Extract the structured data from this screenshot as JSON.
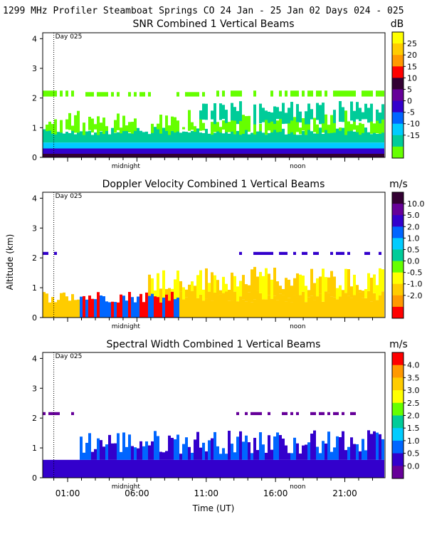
{
  "header": {
    "title": "1299 MHz Profiler  Steamboat Springs CO  24 Jan - 25 Jan 02 Days 024 - 025"
  },
  "shared_axes": {
    "ylabel": "Altitude (km)",
    "xlabel": "Time (UT)",
    "ylim": [
      0,
      4.2
    ],
    "y_ticks": [
      0,
      1,
      2,
      3,
      4
    ],
    "x_tick_labels": [
      "01:00",
      "06:00",
      "11:00",
      "16:00",
      "21:00"
    ],
    "x_tick_hours": [
      1,
      6,
      11,
      16,
      21
    ],
    "day_marker_label": "Day 025",
    "midnight_label": "midnight",
    "noon_label": "noon"
  },
  "chart_data": [
    {
      "type": "heatmap",
      "title": "SNR Combined 1 Vertical Beams",
      "colorbar_unit": "dB",
      "colorbar_labels": [
        "25",
        "20",
        "15",
        "10",
        "5",
        "0",
        "-5",
        "-10",
        "-15"
      ],
      "colorbar_colors": [
        "#ffff00",
        "#ffcc00",
        "#ff9900",
        "#ff0000",
        "#330033",
        "#660099",
        "#3300cc",
        "#0066ff",
        "#00ccff",
        "#00cc99",
        "#66ff00"
      ]
    },
    {
      "type": "heatmap",
      "title": "Doppler Velocity Combined 1 Vertical Beams",
      "colorbar_unit": "m/s",
      "colorbar_labels": [
        "10.0",
        "5.0",
        "2.0",
        "1.0",
        "0.5",
        "0.0",
        "-0.5",
        "-1.0",
        "-2.0"
      ],
      "colorbar_colors": [
        "#330033",
        "#660099",
        "#3300cc",
        "#0066ff",
        "#00ccff",
        "#00cc99",
        "#66ff00",
        "#ffff00",
        "#ffcc00",
        "#ff9900",
        "#ff0000"
      ]
    },
    {
      "type": "heatmap",
      "title": "Spectral Width Combined 1 Vertical Beams",
      "colorbar_unit": "m/s",
      "colorbar_labels": [
        "4.0",
        "3.5",
        "3.0",
        "2.5",
        "2.0",
        "1.5",
        "1.0",
        "0.5",
        "0.0"
      ],
      "colorbar_colors": [
        "#ff0000",
        "#ff9900",
        "#ffcc00",
        "#ffff00",
        "#66ff00",
        "#00cc99",
        "#00ccff",
        "#0066ff",
        "#3300cc",
        "#660099"
      ]
    }
  ]
}
